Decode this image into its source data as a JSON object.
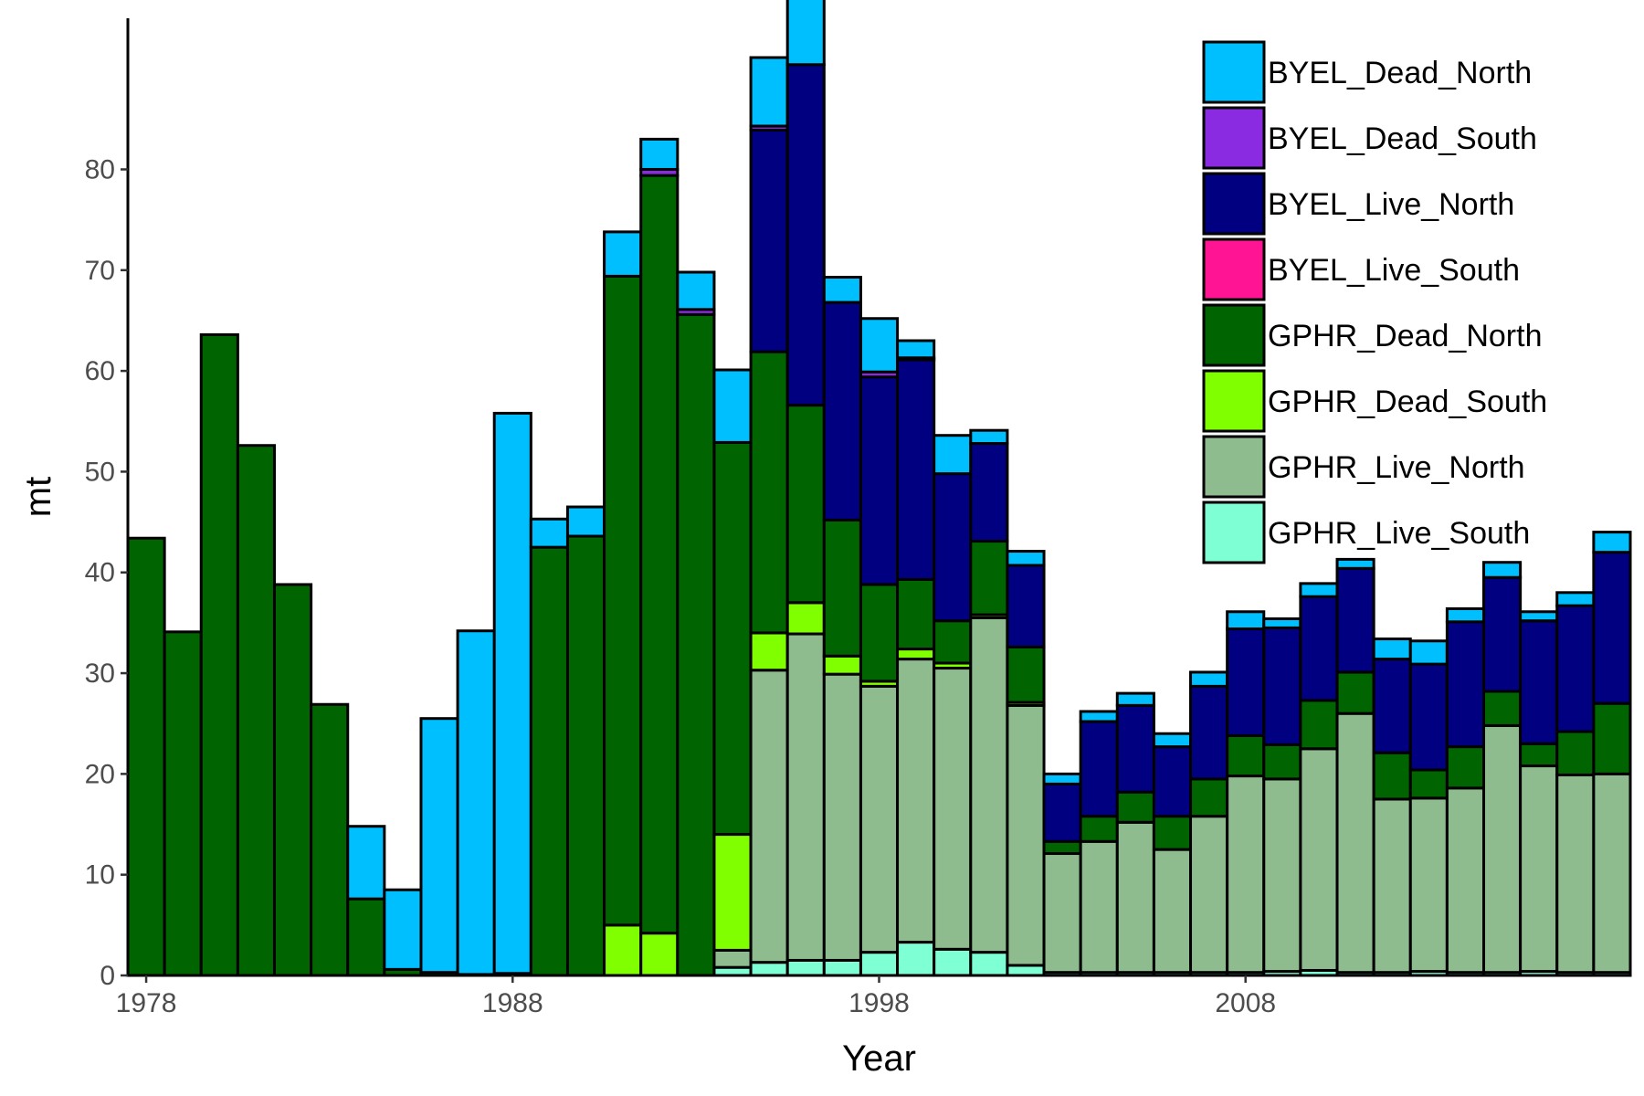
{
  "chart_data": {
    "type": "bar",
    "stacked": true,
    "xlabel": "Year",
    "ylabel": "mt",
    "xlim": [
      1977,
      2016
    ],
    "ylim": [
      0,
      95
    ],
    "x_ticks": [
      1978,
      1988,
      1998,
      2008
    ],
    "y_ticks": [
      0,
      10,
      20,
      30,
      40,
      50,
      60,
      70,
      80
    ],
    "grid": false,
    "legend_position": "top-right",
    "categories": [
      1978,
      1979,
      1980,
      1981,
      1982,
      1983,
      1984,
      1985,
      1986,
      1987,
      1988,
      1989,
      1990,
      1991,
      1992,
      1993,
      1994,
      1995,
      1996,
      1997,
      1998,
      1999,
      2000,
      2001,
      2002,
      2003,
      2004,
      2005,
      2006,
      2007,
      2008,
      2009,
      2010,
      2011,
      2012,
      2013,
      2014,
      2015,
      2016,
      2017,
      2018
    ],
    "series": [
      {
        "name": "GPHR_Live_South",
        "color": "#7FFFD4",
        "values": [
          0,
          0,
          0,
          0,
          0,
          0,
          0,
          0,
          0,
          0,
          0,
          0,
          0,
          0,
          0,
          0,
          0.8,
          1.3,
          1.5,
          1.5,
          2.3,
          3.3,
          2.6,
          2.3,
          1.0,
          0.3,
          0.3,
          0.3,
          0.3,
          0.3,
          0.3,
          0.4,
          0.5,
          0.3,
          0.3,
          0.4,
          0.3,
          0.3,
          0.4,
          0.3,
          0.3
        ]
      },
      {
        "name": "GPHR_Live_North",
        "color": "#8FBC8F",
        "values": [
          0,
          0,
          0,
          0,
          0,
          0,
          0,
          0,
          0,
          0,
          0,
          0,
          0,
          0,
          0,
          0,
          1.7,
          29.0,
          32.4,
          28.4,
          26.4,
          28.1,
          27.9,
          33.2,
          25.8,
          11.8,
          13.0,
          14.9,
          12.2,
          15.5,
          19.5,
          19.1,
          22.0,
          25.7,
          17.2,
          17.2,
          18.3,
          24.5,
          20.4,
          19.6,
          19.7
        ]
      },
      {
        "name": "GPHR_Dead_South",
        "color": "#7FFF00",
        "values": [
          0,
          0,
          0,
          0,
          0,
          0,
          0,
          0,
          0,
          0,
          0,
          0,
          0,
          5.0,
          4.2,
          0,
          11.5,
          3.7,
          3.1,
          1.8,
          0.5,
          1.0,
          0.5,
          0.3,
          0.3,
          0,
          0,
          0,
          0,
          0,
          0,
          0,
          0,
          0,
          0,
          0,
          0,
          0,
          0,
          0,
          0
        ]
      },
      {
        "name": "GPHR_Dead_North",
        "color": "#006400",
        "values": [
          43.4,
          34.1,
          63.6,
          52.6,
          38.8,
          26.9,
          7.6,
          0.6,
          0.3,
          0.1,
          0.2,
          42.5,
          43.6,
          64.4,
          75.2,
          65.6,
          38.9,
          27.9,
          19.6,
          13.5,
          9.6,
          6.9,
          4.2,
          7.3,
          5.5,
          1.2,
          2.5,
          3.0,
          3.3,
          3.7,
          4.0,
          3.4,
          4.8,
          4.1,
          4.6,
          2.8,
          4.1,
          3.4,
          2.2,
          4.3,
          7.0
        ]
      },
      {
        "name": "BYEL_Live_South",
        "color": "#FF1493",
        "values": [
          0,
          0,
          0,
          0,
          0,
          0,
          0,
          0,
          0,
          0,
          0,
          0,
          0,
          0,
          0,
          0,
          0,
          0,
          0,
          0,
          0,
          0,
          0,
          0,
          0,
          0,
          0,
          0,
          0,
          0,
          0,
          0,
          0,
          0,
          0,
          0,
          0,
          0,
          0,
          0,
          0
        ]
      },
      {
        "name": "BYEL_Live_North",
        "color": "#000080",
        "values": [
          0,
          0,
          0,
          0,
          0,
          0,
          0,
          0,
          0,
          0,
          0,
          0,
          0,
          0,
          0,
          0,
          0,
          22.0,
          33.8,
          21.6,
          20.6,
          21.8,
          14.6,
          9.7,
          8.1,
          5.7,
          9.4,
          8.6,
          6.9,
          9.2,
          10.6,
          11.6,
          10.3,
          10.3,
          9.3,
          10.5,
          12.4,
          11.3,
          12.2,
          12.5,
          15.0
        ]
      },
      {
        "name": "BYEL_Dead_South",
        "color": "#8A2BE2",
        "values": [
          0,
          0,
          0,
          0,
          0,
          0,
          0,
          0,
          0,
          0,
          0,
          0,
          0,
          0,
          0.6,
          0.5,
          0,
          0.4,
          0,
          0,
          0.5,
          0.2,
          0,
          0,
          0,
          0,
          0,
          0,
          0,
          0,
          0,
          0,
          0,
          0,
          0,
          0,
          0,
          0,
          0,
          0,
          0
        ]
      },
      {
        "name": "BYEL_Dead_North",
        "color": "#00BFFF",
        "values": [
          0,
          0,
          0,
          0,
          0,
          0,
          7.2,
          7.9,
          25.2,
          34.1,
          55.6,
          2.8,
          2.9,
          4.4,
          3.0,
          3.7,
          7.2,
          6.8,
          8.5,
          2.5,
          5.3,
          1.7,
          3.8,
          1.3,
          1.4,
          1.0,
          1.0,
          1.2,
          1.3,
          1.4,
          1.7,
          0.9,
          1.3,
          0.9,
          2.0,
          2.3,
          1.3,
          1.5,
          0.9,
          1.3,
          2.0
        ]
      }
    ],
    "legend_order": [
      "BYEL_Dead_North",
      "BYEL_Dead_South",
      "BYEL_Live_North",
      "BYEL_Live_South",
      "GPHR_Dead_North",
      "GPHR_Dead_South",
      "GPHR_Live_North",
      "GPHR_Live_South"
    ]
  }
}
